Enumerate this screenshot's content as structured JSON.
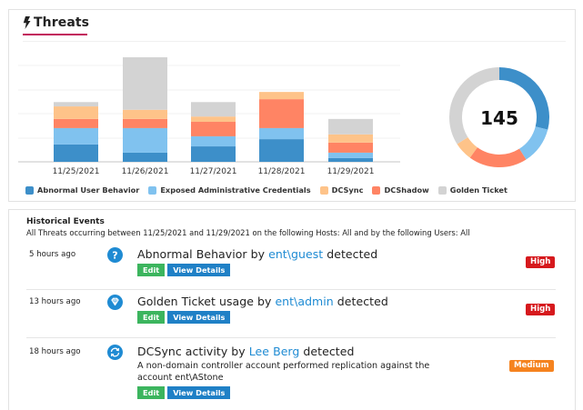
{
  "threats_panel": {
    "title": "Threats",
    "title_icon": "bolt-icon",
    "accent_color": "#c2185b"
  },
  "colors": {
    "abnormal": "#3d8fc9",
    "exposed": "#80c2ef",
    "dcsync": "#fec389",
    "dcshadow": "#ff8464",
    "golden": "#d3d3d3"
  },
  "chart_data": [
    {
      "type": "bar",
      "stacked": true,
      "title": "Threats",
      "xlabel": "",
      "ylabel": "",
      "grid": true,
      "legend_position": "bottom",
      "categories": [
        "11/25/2021",
        "11/26/2021",
        "11/27/2021",
        "11/28/2021",
        "11/29/2021"
      ],
      "series": [
        {
          "name": "Abnormal User Behavior",
          "color": "#3d8fc9",
          "values": [
            3.6,
            1.9,
            3.2,
            4.7,
            0.8
          ]
        },
        {
          "name": "Exposed Administrative Credentials",
          "color": "#80c2ef",
          "values": [
            3.4,
            5.1,
            2.1,
            2.3,
            1.1
          ]
        },
        {
          "name": "DCShadow",
          "color": "#ff8464",
          "values": [
            1.9,
            1.9,
            3.0,
            6.0,
            2.1
          ]
        },
        {
          "name": "DCSync",
          "color": "#fec389",
          "values": [
            2.6,
            1.9,
            1.1,
            1.5,
            1.7
          ]
        },
        {
          "name": "Golden Ticket",
          "color": "#d3d3d3",
          "values": [
            0.9,
            10.9,
            3.0,
            0,
            3.2
          ]
        }
      ],
      "ylim": [
        0,
        22
      ]
    },
    {
      "type": "pie",
      "donut": true,
      "center_label": "145",
      "categories": [
        "Abnormal User Behavior",
        "Exposed Administrative Credentials",
        "DCShadow",
        "DCSync",
        "Golden Ticket"
      ],
      "values": [
        29,
        12,
        19,
        6,
        34
      ],
      "units": "percent_of_ring"
    }
  ],
  "legend": [
    {
      "label": "Abnormal User Behavior",
      "color": "#3d8fc9"
    },
    {
      "label": "Exposed Administrative Credentials",
      "color": "#80c2ef"
    },
    {
      "label": "DCSync",
      "color": "#fec389"
    },
    {
      "label": "DCShadow",
      "color": "#ff8464"
    },
    {
      "label": "Golden Ticket",
      "color": "#d3d3d3"
    }
  ],
  "donut": {
    "total": "145"
  },
  "historical": {
    "title": "Historical Events",
    "subtitle": "All Threats occurring between 11/25/2021 and 11/29/2021 on the following Hosts: All and by the following Users: All",
    "events": [
      {
        "time": "5 hours ago",
        "icon": "question-icon",
        "headline_prefix": "Abnormal Behavior by ",
        "user": "ent\\guest",
        "headline_suffix": " detected",
        "description": "",
        "severity": "High",
        "edit_label": "Edit",
        "view_label": "View Details"
      },
      {
        "time": "13 hours ago",
        "icon": "diamond-icon",
        "headline_prefix": "Golden Ticket usage by ",
        "user": "ent\\admin",
        "headline_suffix": " detected",
        "description": "",
        "severity": "High",
        "edit_label": "Edit",
        "view_label": "View Details"
      },
      {
        "time": "18 hours ago",
        "icon": "sync-icon",
        "headline_prefix": "DCSync activity by ",
        "user": "Lee Berg",
        "headline_suffix": " detected",
        "description": "A non-domain controller account performed replication against the account ent\\AStone",
        "severity": "Medium",
        "edit_label": "Edit",
        "view_label": "View Details"
      }
    ]
  }
}
